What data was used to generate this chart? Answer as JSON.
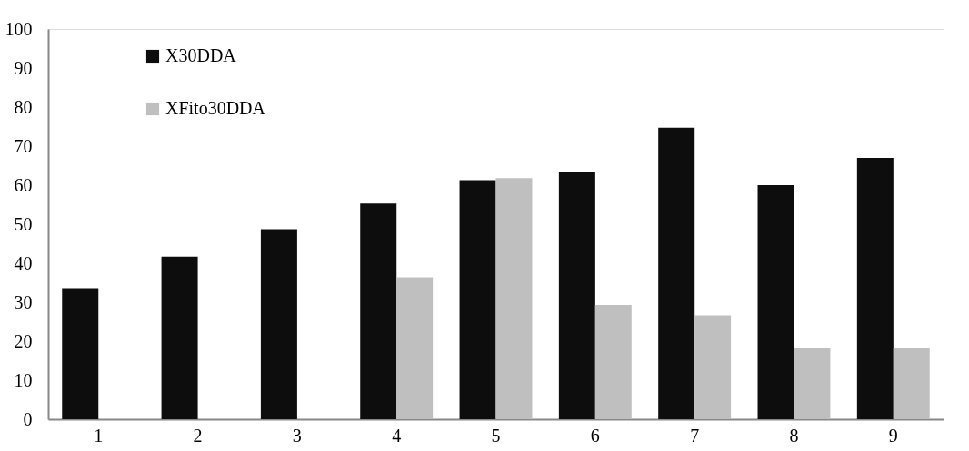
{
  "chart_data": {
    "type": "bar",
    "categories": [
      "1",
      "2",
      "3",
      "4",
      "5",
      "6",
      "7",
      "8",
      "9"
    ],
    "series": [
      {
        "name": "X30DDA",
        "color": "#0d0d0d",
        "values": [
          33.6,
          41.7,
          48.7,
          55.3,
          61.3,
          63.5,
          74.7,
          60.0,
          67.0
        ]
      },
      {
        "name": "XFito30DDA",
        "color": "#bfbfbf",
        "values": [
          null,
          null,
          null,
          36.4,
          61.8,
          29.3,
          26.6,
          18.3,
          18.3
        ]
      }
    ],
    "ylim": [
      0,
      100
    ],
    "yticks": [
      0,
      10,
      20,
      30,
      40,
      50,
      60,
      70,
      80,
      90,
      100
    ],
    "grid": false,
    "legend": "top left"
  }
}
